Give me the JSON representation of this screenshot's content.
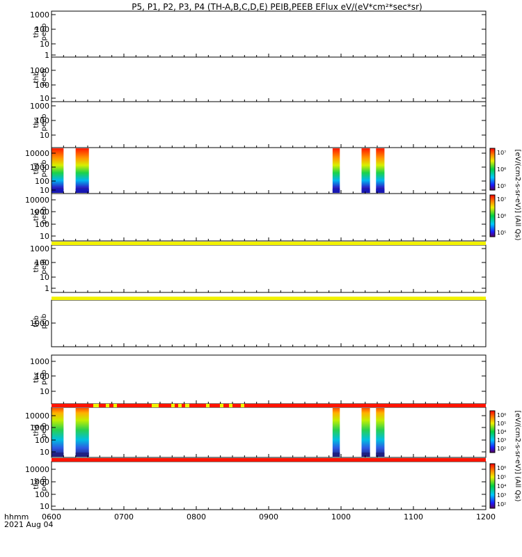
{
  "title": "P5, P1, P2, P3, P4 (TH-A,B,C,D,E) PEIB,PEEB EFlux eV/(eV*cm²*sec*sr)",
  "footer": {
    "time_label": "hhmm",
    "date_label": "2021 Aug 04"
  },
  "colorbar_label_top": "[eV/(cm2-s-sr-eV)] (All Qs)",
  "colorbar_label_bottom": "[eV/(cm2-s-sr-eV)] (All Qs)",
  "chart_data": {
    "type": "heatmap",
    "x_range": [
      "0600",
      "1200"
    ],
    "x_ticks": [
      "0600",
      "0700",
      "0800",
      "0900",
      "1000",
      "1100",
      "1200"
    ],
    "panels": [
      {
        "probe": "tha",
        "instrument": "peeb",
        "y_ticks": [
          "1000",
          "100",
          "10",
          "1"
        ],
        "data_blocks": []
      },
      {
        "probe": "thb",
        "instrument": "peeb",
        "y_ticks": [
          "1000",
          "100",
          "10"
        ],
        "data_blocks": []
      },
      {
        "probe": "thc",
        "instrument": "peeb",
        "y_ticks": [
          "1000",
          "100",
          "10",
          "1"
        ],
        "data_blocks": []
      },
      {
        "probe": "thd",
        "instrument": "peeb",
        "y_ticks": [
          "10000",
          "1000",
          "100",
          "10"
        ],
        "data_blocks": [
          [
            "0600",
            "0610"
          ],
          [
            "0620",
            "0631"
          ],
          [
            "0953",
            "0959"
          ],
          [
            "1017",
            "1024"
          ],
          [
            "1029",
            "1036"
          ]
        ],
        "colorbar": [
          "10⁵",
          "10⁶",
          "10⁷"
        ]
      },
      {
        "probe": "the",
        "instrument": "peeb",
        "y_ticks": [
          "10000",
          "1000",
          "100",
          "10"
        ],
        "data_blocks": [],
        "colorbar": [
          "10⁵",
          "10⁶",
          "10⁷"
        ]
      },
      {
        "probe": "tha",
        "instrument": "peib",
        "y_ticks": [
          "1000",
          "100",
          "10",
          "1"
        ],
        "data_blocks": []
      },
      {
        "probe": "thb",
        "instrument": "peib",
        "y_ticks": [
          "1000"
        ],
        "data_blocks": []
      },
      {
        "probe": "thc",
        "instrument": "peib",
        "y_ticks": [
          "1000",
          "100",
          "10",
          "1"
        ],
        "data_blocks": []
      },
      {
        "probe": "thd",
        "instrument": "peib",
        "y_ticks": [
          "10000",
          "1000",
          "100",
          "10"
        ],
        "data_blocks": [
          [
            "0600",
            "0610"
          ],
          [
            "0620",
            "0631"
          ],
          [
            "0953",
            "0959"
          ],
          [
            "1017",
            "1024"
          ],
          [
            "1029",
            "1036"
          ]
        ],
        "colorbar": [
          "10²",
          "10³",
          "10⁴",
          "10⁵",
          "10⁶"
        ]
      },
      {
        "probe": "the",
        "instrument": "peib",
        "y_ticks": [
          "10000",
          "1000",
          "100",
          "10"
        ],
        "data_blocks": [],
        "colorbar": [
          "10²",
          "10³",
          "10⁴",
          "10⁵",
          "10⁶"
        ]
      }
    ]
  }
}
